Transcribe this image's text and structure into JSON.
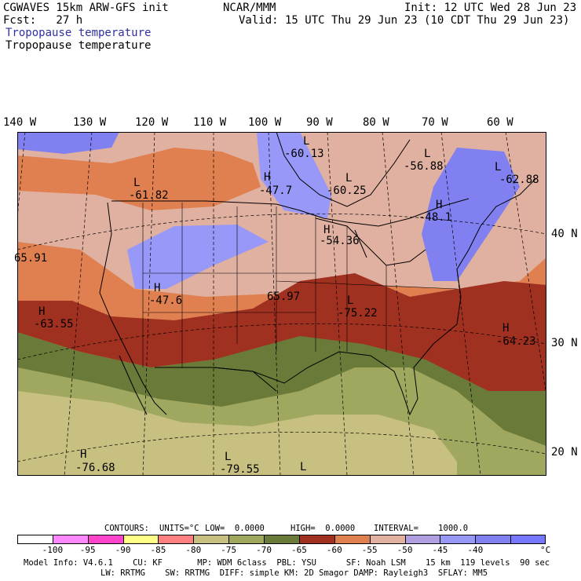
{
  "header": {
    "left_line1": "CGWAVES 15km ARW-GFS init",
    "center_line1": "NCAR/MMM",
    "right_line1": "Init: 12 UTC Wed 28 Jun 23",
    "left_line2": "Fcst:   27 h",
    "right_line2": "Valid: 15 UTC Thu 29 Jun 23 (10 CDT Thu 29 Jun 23)",
    "field_title_1": "Tropopause temperature",
    "field_title_2": "Tropopause temperature",
    "field_title_1_color": "#3030a0"
  },
  "longitude_labels": [
    "140 W",
    "130 W",
    "120 W",
    "110 W",
    "100 W",
    "90 W",
    "80 W",
    "70 W",
    "60 W"
  ],
  "latitude_labels": [
    "40 N",
    "30 N",
    "20 N"
  ],
  "map_labels": [
    {
      "type": "L",
      "value": "-60.13"
    },
    {
      "type": "L",
      "value": "-56.88"
    },
    {
      "type": "L",
      "value": "-62.88"
    },
    {
      "type": "H",
      "value": "-47.7"
    },
    {
      "type": "L",
      "value": "-60.25"
    },
    {
      "type": "L",
      "value": "-61.82"
    },
    {
      "type": "H",
      "value": "-48.1"
    },
    {
      "type": "H",
      "value": "-54.36"
    },
    {
      "type": "",
      "value": "65.91"
    },
    {
      "type": "H",
      "value": "-47.6"
    },
    {
      "type": "",
      "value": "65.97"
    },
    {
      "type": "L",
      "value": "-75.22"
    },
    {
      "type": "H",
      "value": "-63.55"
    },
    {
      "type": "H",
      "value": "-64.23"
    },
    {
      "type": "H",
      "value": "-76.68"
    },
    {
      "type": "L",
      "value": "-79.55"
    },
    {
      "type": "L",
      "value": ""
    }
  ],
  "contour_info": {
    "contours": "CONTOURS:",
    "units": "UNITS=°C",
    "low": "LOW=  0.0000",
    "high": "HIGH=  0.0000",
    "interval": "INTERVAL=    1000.0"
  },
  "colorbar": {
    "colors": [
      "#ffffff",
      "#ff88ff",
      "#ff44cc",
      "#ffff88",
      "#ff8080",
      "#c8c080",
      "#a0a860",
      "#6a7a38",
      "#a03020",
      "#e08050",
      "#e0b0a0",
      "#b0a0e0",
      "#9898f8",
      "#8080f0",
      "#7878ff"
    ],
    "ticks": [
      "-100",
      "-95",
      "-90",
      "-85",
      "-80",
      "-75",
      "-70",
      "-65",
      "-60",
      "-55",
      "-50",
      "-45",
      "-40"
    ],
    "unit": "°C"
  },
  "footer": {
    "line1": "Model Info: V4.6.1    CU: KF       MP: WDM 6class  PBL: YSU      SF: Noah LSM    15 km  119 levels  90 sec",
    "line2": "LW: RRTMG    SW: RRTMG  DIFF: simple KM: 2D Smagor DAMP: Rayleigh3  SFLAY: MM5"
  }
}
